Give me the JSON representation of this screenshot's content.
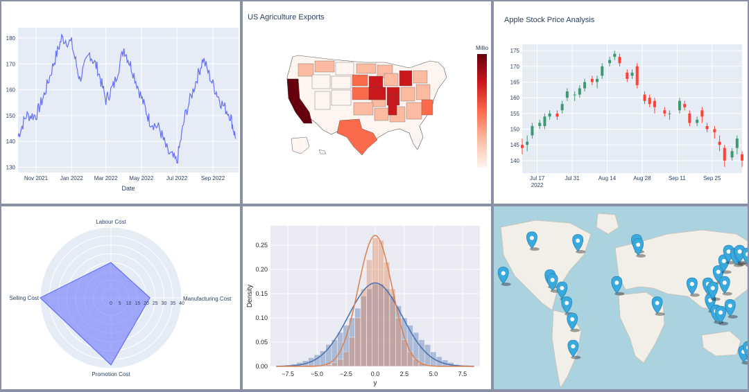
{
  "panels": {
    "line": {
      "xlabel": "Date",
      "ylim": [
        128,
        184
      ],
      "y_ticks": [
        130,
        140,
        150,
        160,
        170,
        180
      ],
      "x_ticks": [
        "Nov 2021",
        "Jan 2022",
        "Mar 2022",
        "May 2022",
        "Jul 2022",
        "Sep 2022"
      ],
      "line_color": "#636efa"
    },
    "map": {
      "title": "US Agriculture Exports",
      "colorbar_title": "Millio",
      "colorbar_ticks": [
        ""
      ],
      "colorscale": [
        "#fff5f0",
        "#fcbba1",
        "#fb6a4a",
        "#cb181d",
        "#67000d"
      ]
    },
    "candle": {
      "title": "Apple Stock Price Analysis",
      "ylim": [
        136,
        177
      ],
      "y_ticks": [
        140,
        145,
        150,
        155,
        160,
        165,
        170,
        175
      ],
      "x_ticks": [
        "Jul 17\n2022",
        "Jul 31",
        "Aug 14",
        "Aug 28",
        "Sep 11",
        "Sep 25"
      ],
      "up_color": "#3d9970",
      "down_color": "#ff4136"
    },
    "radar": {
      "axes": [
        "Manufacturing Cost",
        "Labour Cost",
        "Selling Cost",
        "Promotion Cost"
      ],
      "radial_ticks": [
        "0",
        "5",
        "10",
        "15",
        "20",
        "25",
        "30",
        "35",
        "40"
      ],
      "fill_color": "#636efa"
    },
    "hist": {
      "xlabel": "y",
      "ylabel": "Density",
      "x_ticks": [
        "−7.5",
        "−5.0",
        "−2.5",
        "0.0",
        "2.5",
        "5.0",
        "7.5"
      ],
      "y_ticks": [
        "0.00",
        "0.05",
        "0.10",
        "0.15",
        "0.20",
        "0.25"
      ],
      "blue": "#4c72b0",
      "orange": "#dd8452"
    },
    "world": {
      "marker_color": "#38aadd",
      "marker_count": 30
    }
  },
  "chart_data": [
    {
      "type": "line",
      "xlabel": "Date",
      "x_range": [
        "2021-10-01",
        "2022-10-15"
      ],
      "ylim": [
        128,
        184
      ],
      "x": [
        "2021-10-01",
        "2021-10-15",
        "2021-11-01",
        "2021-11-15",
        "2021-12-01",
        "2021-12-15",
        "2022-01-01",
        "2022-01-15",
        "2022-02-01",
        "2022-02-15",
        "2022-03-01",
        "2022-03-15",
        "2022-04-01",
        "2022-04-15",
        "2022-05-01",
        "2022-05-15",
        "2022-06-01",
        "2022-06-15",
        "2022-07-01",
        "2022-07-15",
        "2022-08-01",
        "2022-08-15",
        "2022-09-01",
        "2022-09-15",
        "2022-10-01",
        "2022-10-10"
      ],
      "values": [
        142,
        150,
        150,
        158,
        170,
        180,
        178,
        164,
        174,
        168,
        156,
        162,
        176,
        168,
        157,
        148,
        145,
        136,
        132,
        150,
        162,
        172,
        162,
        155,
        150,
        141
      ]
    },
    {
      "type": "choropleth",
      "title": "US Agriculture Exports",
      "colorbar_title": "Millio",
      "states_high": [
        "California"
      ],
      "states_mid": [
        "Iowa",
        "Illinois",
        "Texas",
        "Minnesota",
        "Nebraska"
      ]
    },
    {
      "type": "candlestick",
      "title": "Apple Stock Price Analysis",
      "ylim": [
        136,
        177
      ],
      "x_range": [
        "2022-07-11",
        "2022-10-07"
      ],
      "x": [
        "2022-07-11",
        "2022-07-13",
        "2022-07-15",
        "2022-07-18",
        "2022-07-20",
        "2022-07-22",
        "2022-07-25",
        "2022-07-27",
        "2022-07-29",
        "2022-08-01",
        "2022-08-03",
        "2022-08-05",
        "2022-08-08",
        "2022-08-10",
        "2022-08-12",
        "2022-08-15",
        "2022-08-17",
        "2022-08-19",
        "2022-08-22",
        "2022-08-24",
        "2022-08-26",
        "2022-08-29",
        "2022-08-31",
        "2022-09-02",
        "2022-09-06",
        "2022-09-08",
        "2022-09-12",
        "2022-09-14",
        "2022-09-16",
        "2022-09-19",
        "2022-09-21",
        "2022-09-23",
        "2022-09-26",
        "2022-09-28",
        "2022-09-30",
        "2022-10-03",
        "2022-10-05",
        "2022-10-07"
      ],
      "open": [
        145,
        145,
        148,
        151,
        151,
        154,
        155,
        156,
        160,
        161,
        161,
        163,
        166,
        165,
        167,
        171,
        173,
        173,
        168,
        167,
        170,
        161,
        160,
        159,
        156,
        155,
        156,
        158,
        155,
        152,
        156,
        151,
        150,
        146,
        144,
        141,
        144,
        142
      ],
      "close": [
        144,
        146,
        151,
        152,
        154,
        155,
        154,
        158,
        162,
        161,
        163,
        165,
        165,
        166,
        170,
        172,
        174,
        171,
        166,
        168,
        164,
        159,
        158,
        157,
        155,
        155,
        159,
        157,
        152,
        153,
        154,
        150,
        149,
        145,
        140,
        143,
        147,
        140
      ],
      "high": [
        147,
        148,
        152,
        153,
        155,
        156,
        156,
        159,
        163,
        162,
        164,
        166,
        167,
        167,
        171,
        173,
        175,
        174,
        169,
        169,
        171,
        162,
        161,
        160,
        157,
        156,
        160,
        159,
        156,
        154,
        157,
        152,
        151,
        148,
        145,
        144,
        148,
        143
      ],
      "low": [
        142,
        143,
        147,
        150,
        150,
        153,
        153,
        155,
        159,
        159,
        160,
        162,
        164,
        163,
        166,
        170,
        172,
        170,
        165,
        166,
        163,
        158,
        157,
        155,
        154,
        153,
        155,
        156,
        151,
        151,
        152,
        149,
        147,
        143,
        138,
        140,
        142,
        138
      ]
    },
    {
      "type": "radar",
      "axes": [
        "Manufacturing Cost",
        "Labour Cost",
        "Selling Cost",
        "Promotion Cost"
      ],
      "radial_range": [
        0,
        40
      ],
      "values": [
        22,
        20,
        40,
        38
      ]
    },
    {
      "type": "histogram_kde",
      "xlabel": "y",
      "ylabel": "Density",
      "x_range": [
        -9,
        9
      ],
      "ylim": [
        0,
        0.29
      ],
      "bins": [
        -8,
        -7.5,
        -7,
        -6.5,
        -6,
        -5.5,
        -5,
        -4.5,
        -4,
        -3.5,
        -3,
        -2.5,
        -2,
        -1.5,
        -1,
        -0.5,
        0,
        0.5,
        1,
        1.5,
        2,
        2.5,
        3,
        3.5,
        4,
        4.5,
        5,
        5.5,
        6,
        6.5,
        7,
        7.5
      ],
      "series": [
        {
          "name": "",
          "values": [
            0.002,
            0.003,
            0.005,
            0.008,
            0.012,
            0.018,
            0.024,
            0.032,
            0.045,
            0.055,
            0.07,
            0.085,
            0.1,
            0.12,
            0.145,
            0.16,
            0.17,
            0.17,
            0.16,
            0.145,
            0.125,
            0.1,
            0.085,
            0.07,
            0.055,
            0.045,
            0.03,
            0.02,
            0.013,
            0.008,
            0.004,
            0.002
          ]
        },
        {
          "name": "",
          "values": [
            0,
            0,
            0,
            0,
            0,
            0,
            0,
            0.002,
            0.004,
            0.008,
            0.015,
            0.03,
            0.06,
            0.1,
            0.16,
            0.22,
            0.265,
            0.26,
            0.215,
            0.16,
            0.1,
            0.055,
            0.03,
            0.015,
            0.007,
            0.003,
            0.001,
            0,
            0,
            0,
            0,
            0
          ]
        }
      ]
    },
    {
      "type": "map_markers",
      "lonlat": [
        [
          -158,
          21
        ],
        [
          -122,
          47
        ],
        [
          -99,
          19
        ],
        [
          -96,
          16
        ],
        [
          -84,
          10
        ],
        [
          -78,
          -1
        ],
        [
          -71,
          -13
        ],
        [
          -70,
          -33
        ],
        [
          -64,
          45
        ],
        [
          10,
          45
        ],
        [
          12,
          42
        ],
        [
          36,
          -1
        ],
        [
          -15,
          14
        ],
        [
          80,
          13
        ],
        [
          100,
          13
        ],
        [
          103,
          1
        ],
        [
          106,
          10
        ],
        [
          110,
          -7
        ],
        [
          113,
          22
        ],
        [
          120,
          30
        ],
        [
          121,
          14
        ],
        [
          126,
          37
        ],
        [
          135,
          35
        ],
        [
          139,
          36
        ],
        [
          140,
          37
        ],
        [
          145,
          -37
        ],
        [
          151,
          -34
        ],
        [
          116,
          -8
        ],
        [
          128,
          -3
        ],
        [
          150,
          35
        ]
      ]
    }
  ]
}
